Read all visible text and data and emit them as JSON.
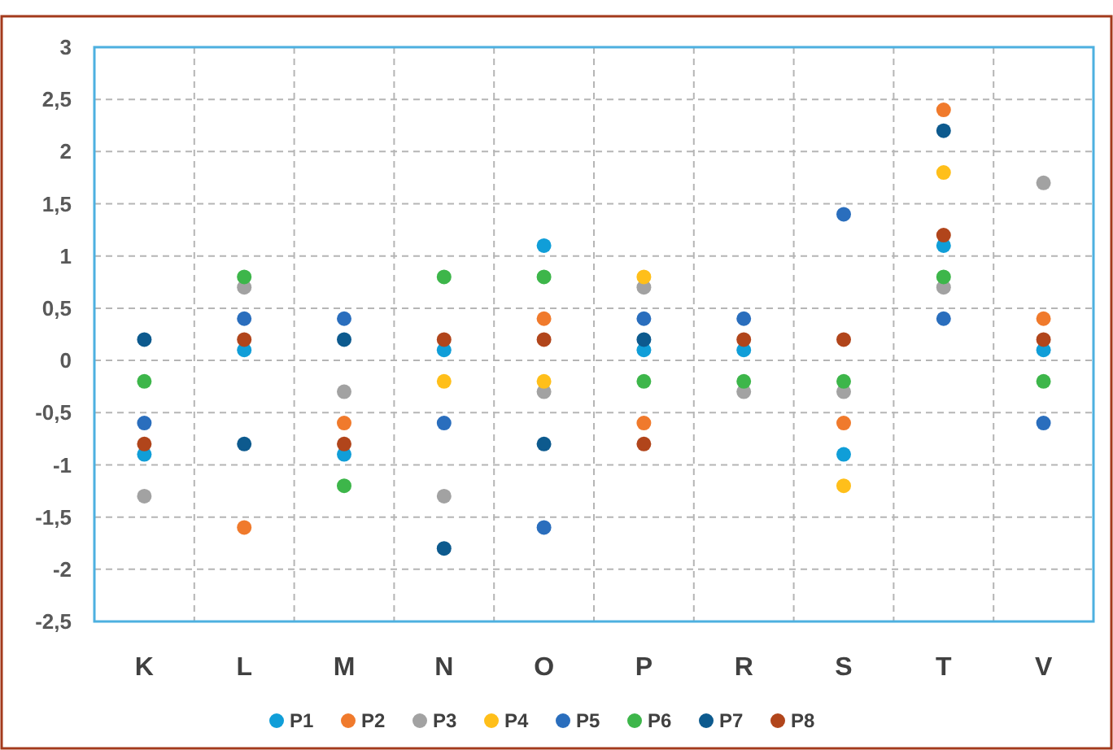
{
  "chart_data": {
    "type": "scatter",
    "categories": [
      "K",
      "L",
      "M",
      "N",
      "O",
      "P",
      "R",
      "S",
      "T",
      "V"
    ],
    "series": [
      {
        "name": "P1",
        "color": "#109ed8",
        "values": [
          -0.9,
          0.1,
          -0.9,
          0.1,
          1.1,
          0.1,
          0.1,
          -0.9,
          1.1,
          0.1
        ]
      },
      {
        "name": "P2",
        "color": "#f07a2c",
        "values": [
          null,
          -1.6,
          -0.6,
          null,
          0.4,
          -0.6,
          null,
          -0.6,
          2.4,
          0.4
        ]
      },
      {
        "name": "P3",
        "color": "#a2a2a2",
        "values": [
          -1.3,
          0.7,
          -0.3,
          -1.3,
          -0.3,
          0.7,
          -0.3,
          -0.3,
          0.7,
          1.7
        ]
      },
      {
        "name": "P4",
        "color": "#ffbf1a",
        "values": [
          null,
          null,
          null,
          -0.2,
          -0.2,
          0.8,
          null,
          -1.2,
          1.8,
          null
        ]
      },
      {
        "name": "P5",
        "color": "#2a6ebd",
        "values": [
          -0.6,
          0.4,
          0.4,
          -0.6,
          -1.6,
          0.4,
          0.4,
          1.4,
          0.4,
          -0.6
        ]
      },
      {
        "name": "P6",
        "color": "#3db64a",
        "values": [
          -0.2,
          0.8,
          -1.2,
          0.8,
          0.8,
          -0.2,
          -0.2,
          -0.2,
          0.8,
          -0.2
        ]
      },
      {
        "name": "P7",
        "color": "#0d5a8e",
        "values": [
          0.2,
          -0.8,
          0.2,
          -1.8,
          -0.8,
          0.2,
          null,
          null,
          2.2,
          null
        ]
      },
      {
        "name": "P8",
        "color": "#b1451b",
        "values": [
          -0.8,
          0.2,
          -0.8,
          0.2,
          0.2,
          -0.8,
          0.2,
          0.2,
          1.2,
          0.2
        ]
      }
    ],
    "ylim": [
      -2.5,
      3
    ],
    "yticks": [
      {
        "value": -2.5,
        "label": "-2,5"
      },
      -2,
      {
        "value": -1.5,
        "label": "-1,5"
      },
      -1,
      {
        "value": -0.5,
        "label": "-0,5"
      },
      0,
      {
        "value": 0.5,
        "label": "0,5"
      },
      1,
      {
        "value": 1.5,
        "label": "1,5"
      },
      2,
      {
        "value": 2.5,
        "label": "2,5"
      },
      3
    ],
    "grid": true,
    "legend": "bottom",
    "marker": "circle"
  }
}
